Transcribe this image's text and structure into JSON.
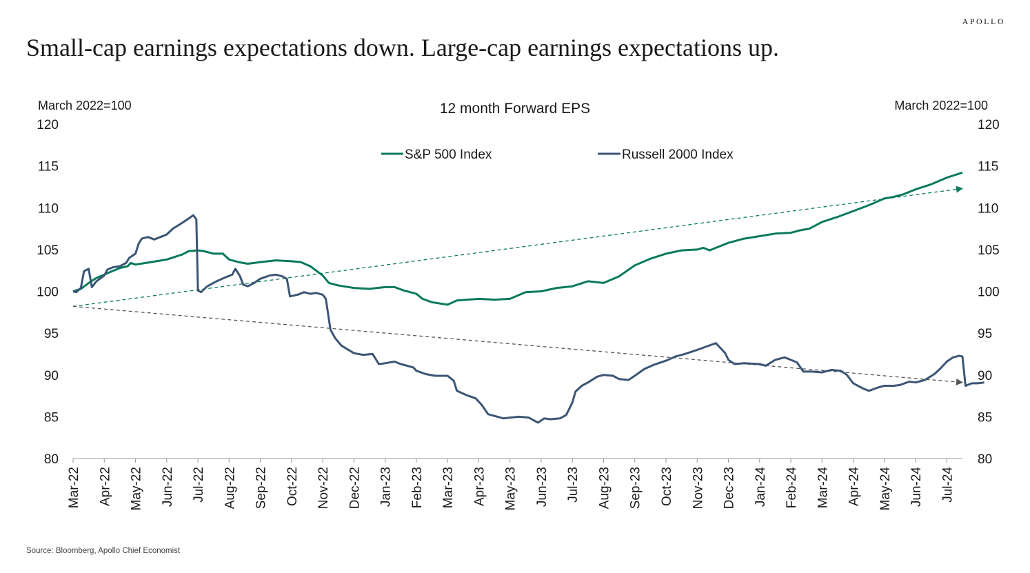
{
  "brand": "APOLLO",
  "headline": "Small-cap earnings expectations down. Large-cap earnings expectations up.",
  "source": "Source: Bloomberg, Apollo Chief Economist",
  "chart_data": {
    "type": "line",
    "title": "12 month Forward EPS",
    "left_unit": "March 2022=100",
    "right_unit": "March 2022=100",
    "ylim": [
      80,
      120
    ],
    "yticks": [
      80,
      85,
      90,
      95,
      100,
      105,
      110,
      115,
      120
    ],
    "x_categories": [
      "Mar-22",
      "Apr-22",
      "May-22",
      "Jun-22",
      "Jul-22",
      "Aug-22",
      "Sep-22",
      "Oct-22",
      "Nov-22",
      "Dec-22",
      "Jan-23",
      "Feb-23",
      "Mar-23",
      "Apr-23",
      "May-23",
      "Jun-23",
      "Jul-23",
      "Aug-23",
      "Sep-23",
      "Oct-23",
      "Nov-23",
      "Dec-23",
      "Jan-24",
      "Feb-24",
      "Mar-24",
      "Apr-24",
      "May-24",
      "Jun-24",
      "Jul-24"
    ],
    "x_range": [
      0,
      28.5
    ],
    "legend_position": "top-center",
    "series": [
      {
        "name": "S&P 500 Index",
        "color": "#0a7a5c",
        "points": [
          [
            0,
            100
          ],
          [
            0.25,
            100.3
          ],
          [
            0.5,
            101
          ],
          [
            0.75,
            101.6
          ],
          [
            1,
            102
          ],
          [
            1.25,
            102.4
          ],
          [
            1.5,
            102.8
          ],
          [
            1.75,
            103
          ],
          [
            1.85,
            103.4
          ],
          [
            2,
            103.2
          ],
          [
            2.5,
            103.5
          ],
          [
            3,
            103.8
          ],
          [
            3.5,
            104.4
          ],
          [
            3.7,
            104.8
          ],
          [
            4,
            104.9
          ],
          [
            4.2,
            104.8
          ],
          [
            4.5,
            104.5
          ],
          [
            4.8,
            104.5
          ],
          [
            5,
            103.8
          ],
          [
            5.3,
            103.5
          ],
          [
            5.6,
            103.3
          ],
          [
            6,
            103.5
          ],
          [
            6.5,
            103.7
          ],
          [
            7,
            103.6
          ],
          [
            7.3,
            103.5
          ],
          [
            7.6,
            103
          ],
          [
            8,
            101.9
          ],
          [
            8.2,
            101
          ],
          [
            8.5,
            100.7
          ],
          [
            9,
            100.4
          ],
          [
            9.5,
            100.3
          ],
          [
            10,
            100.5
          ],
          [
            10.3,
            100.5
          ],
          [
            10.6,
            100.1
          ],
          [
            11,
            99.7
          ],
          [
            11.2,
            99.1
          ],
          [
            11.5,
            98.7
          ],
          [
            12,
            98.4
          ],
          [
            12.3,
            98.9
          ],
          [
            13,
            99.1
          ],
          [
            13.5,
            99
          ],
          [
            14,
            99.1
          ],
          [
            14.5,
            99.9
          ],
          [
            15,
            100
          ],
          [
            15.5,
            100.4
          ],
          [
            16,
            100.6
          ],
          [
            16.5,
            101.2
          ],
          [
            17,
            101
          ],
          [
            17.5,
            101.8
          ],
          [
            18,
            103.1
          ],
          [
            18.5,
            103.9
          ],
          [
            19,
            104.5
          ],
          [
            19.5,
            104.9
          ],
          [
            20,
            105
          ],
          [
            20.2,
            105.2
          ],
          [
            20.4,
            104.9
          ],
          [
            20.6,
            105.2
          ],
          [
            21,
            105.8
          ],
          [
            21.5,
            106.3
          ],
          [
            22,
            106.6
          ],
          [
            22.5,
            106.9
          ],
          [
            23,
            107
          ],
          [
            23.3,
            107.3
          ],
          [
            23.6,
            107.5
          ],
          [
            24,
            108.3
          ],
          [
            24.5,
            108.9
          ],
          [
            25,
            109.6
          ],
          [
            25.5,
            110.3
          ],
          [
            26,
            111.1
          ],
          [
            26.3,
            111.3
          ],
          [
            26.6,
            111.6
          ],
          [
            27,
            112.2
          ],
          [
            27.5,
            112.8
          ],
          [
            28,
            113.6
          ],
          [
            28.5,
            114.2
          ]
        ]
      },
      {
        "name": "Russell 2000 Index",
        "color": "#3b5575",
        "points": [
          [
            0,
            100
          ],
          [
            0.1,
            99.9
          ],
          [
            0.25,
            100.4
          ],
          [
            0.35,
            102.4
          ],
          [
            0.5,
            102.7
          ],
          [
            0.6,
            100.5
          ],
          [
            0.75,
            101.2
          ],
          [
            1,
            101.9
          ],
          [
            1.1,
            102.6
          ],
          [
            1.3,
            102.9
          ],
          [
            1.5,
            103
          ],
          [
            1.7,
            103.4
          ],
          [
            1.8,
            104
          ],
          [
            2,
            104.5
          ],
          [
            2.1,
            105.7
          ],
          [
            2.2,
            106.3
          ],
          [
            2.4,
            106.5
          ],
          [
            2.6,
            106.2
          ],
          [
            2.8,
            106.5
          ],
          [
            3,
            106.8
          ],
          [
            3.2,
            107.5
          ],
          [
            3.5,
            108.2
          ],
          [
            3.7,
            108.7
          ],
          [
            3.85,
            109.1
          ],
          [
            3.95,
            108.6
          ],
          [
            4,
            100.1
          ],
          [
            4.1,
            99.9
          ],
          [
            4.3,
            100.6
          ],
          [
            4.6,
            101.2
          ],
          [
            4.9,
            101.7
          ],
          [
            5.1,
            102
          ],
          [
            5.2,
            102.7
          ],
          [
            5.35,
            101.8
          ],
          [
            5.45,
            100.8
          ],
          [
            5.6,
            100.6
          ],
          [
            5.8,
            101
          ],
          [
            6,
            101.5
          ],
          [
            6.3,
            101.9
          ],
          [
            6.5,
            102
          ],
          [
            6.7,
            101.8
          ],
          [
            6.85,
            101.5
          ],
          [
            6.95,
            99.4
          ],
          [
            7.2,
            99.6
          ],
          [
            7.4,
            99.9
          ],
          [
            7.6,
            99.7
          ],
          [
            7.8,
            99.8
          ],
          [
            8,
            99.6
          ],
          [
            8.1,
            99.1
          ],
          [
            8.25,
            95.4
          ],
          [
            8.4,
            94.4
          ],
          [
            8.6,
            93.5
          ],
          [
            9,
            92.6
          ],
          [
            9.3,
            92.4
          ],
          [
            9.6,
            92.5
          ],
          [
            9.8,
            91.3
          ],
          [
            10,
            91.4
          ],
          [
            10.3,
            91.6
          ],
          [
            10.5,
            91.3
          ],
          [
            10.9,
            90.9
          ],
          [
            11,
            90.5
          ],
          [
            11.3,
            90.1
          ],
          [
            11.6,
            89.9
          ],
          [
            12,
            89.9
          ],
          [
            12.2,
            89.3
          ],
          [
            12.3,
            88.1
          ],
          [
            12.6,
            87.6
          ],
          [
            12.9,
            87.2
          ],
          [
            13.1,
            86.4
          ],
          [
            13.3,
            85.3
          ],
          [
            13.5,
            85.1
          ],
          [
            13.8,
            84.8
          ],
          [
            14,
            84.9
          ],
          [
            14.3,
            85
          ],
          [
            14.6,
            84.9
          ],
          [
            14.9,
            84.3
          ],
          [
            15.1,
            84.8
          ],
          [
            15.3,
            84.7
          ],
          [
            15.6,
            84.8
          ],
          [
            15.8,
            85.2
          ],
          [
            16,
            86.7
          ],
          [
            16.1,
            88
          ],
          [
            16.3,
            88.7
          ],
          [
            16.5,
            89.1
          ],
          [
            16.8,
            89.8
          ],
          [
            17,
            90
          ],
          [
            17.3,
            89.9
          ],
          [
            17.5,
            89.5
          ],
          [
            17.8,
            89.4
          ],
          [
            18,
            89.9
          ],
          [
            18.3,
            90.7
          ],
          [
            18.6,
            91.2
          ],
          [
            19,
            91.7
          ],
          [
            19.3,
            92.2
          ],
          [
            19.6,
            92.5
          ],
          [
            20,
            93
          ],
          [
            20.3,
            93.4
          ],
          [
            20.6,
            93.8
          ],
          [
            20.9,
            92.6
          ],
          [
            21,
            91.8
          ],
          [
            21.2,
            91.3
          ],
          [
            21.5,
            91.4
          ],
          [
            22,
            91.3
          ],
          [
            22.2,
            91.1
          ],
          [
            22.5,
            91.8
          ],
          [
            22.8,
            92.1
          ],
          [
            23,
            91.8
          ],
          [
            23.2,
            91.5
          ],
          [
            23.4,
            90.4
          ],
          [
            23.7,
            90.4
          ],
          [
            24,
            90.3
          ],
          [
            24.3,
            90.6
          ],
          [
            24.6,
            90.5
          ],
          [
            24.8,
            90
          ],
          [
            25,
            89
          ],
          [
            25.3,
            88.4
          ],
          [
            25.5,
            88.1
          ],
          [
            25.8,
            88.5
          ],
          [
            26,
            88.7
          ],
          [
            26.3,
            88.7
          ],
          [
            26.5,
            88.8
          ],
          [
            26.8,
            89.2
          ],
          [
            27,
            89.1
          ],
          [
            27.3,
            89.4
          ],
          [
            27.6,
            90.1
          ],
          [
            27.8,
            90.8
          ],
          [
            28,
            91.6
          ],
          [
            28.2,
            92.1
          ],
          [
            28.4,
            92.3
          ],
          [
            28.5,
            92.2
          ],
          [
            28.6,
            88.7
          ],
          [
            28.8,
            89
          ],
          [
            29,
            89
          ],
          [
            29.2,
            89.1
          ]
        ]
      }
    ],
    "trend_lines": [
      {
        "color": "#0a7a5c",
        "from": [
          0,
          98.2
        ],
        "to": [
          28.5,
          112.3
        ]
      },
      {
        "color": "#555555",
        "from": [
          0,
          98.2
        ],
        "to": [
          28.5,
          89.1
        ]
      }
    ]
  }
}
